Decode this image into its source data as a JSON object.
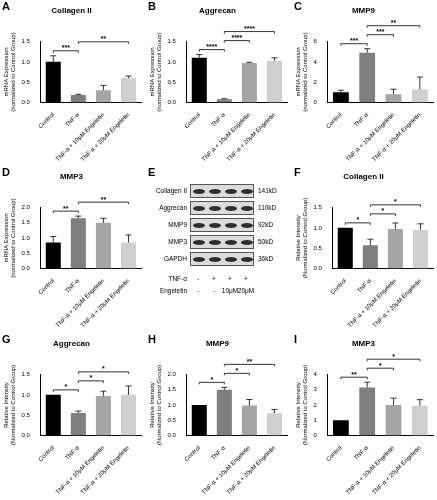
{
  "chart_data": [
    {
      "type": "bar",
      "panel": "A",
      "title": "Collagen II",
      "y_label": [
        "mRNA Expression",
        "(normalized to Control Group)"
      ],
      "categories": [
        "Control",
        "TNF-α",
        "TNF-α + 10μM Engeletin",
        "TNF-α + 20μM Engeletin"
      ],
      "values": [
        1.0,
        0.18,
        0.3,
        0.6
      ],
      "errors": [
        0.15,
        0.02,
        0.12,
        0.05
      ],
      "colors": [
        "#000000",
        "#7f7f7f",
        "#a6a6a6",
        "#cfcfcf"
      ],
      "ylim": [
        0,
        1.5
      ],
      "yticks": [
        {
          "value": 0,
          "label": "0.0"
        },
        0.5,
        {
          "value": 1,
          "label": "1.0"
        },
        1.5
      ],
      "grid": false,
      "annotations": [
        {
          "from": "Control",
          "to": "TNF-α",
          "text": "***"
        },
        {
          "from": "TNF-α",
          "to": "TNF-α + 20μM Engeletin",
          "text": "**"
        }
      ]
    },
    {
      "type": "bar",
      "panel": "B",
      "title": "Aggrecan",
      "y_label": [
        "mRNA Expression",
        "(normalized to Control Group)"
      ],
      "categories": [
        "Control",
        "TNF-α",
        "TNF-α + 10μM Engeletin",
        "TNF-α + 20μM Engeletin"
      ],
      "values": [
        1.1,
        0.08,
        0.97,
        1.03
      ],
      "errors": [
        0.08,
        0.01,
        0.02,
        0.07
      ],
      "colors": [
        "#000000",
        "#7f7f7f",
        "#a6a6a6",
        "#cfcfcf"
      ],
      "ylim": [
        0,
        1.5
      ],
      "yticks": [
        {
          "value": 0,
          "label": "0.0"
        },
        0.5,
        {
          "value": 1,
          "label": "1.0"
        },
        1.5
      ],
      "grid": false,
      "annotations": [
        {
          "from": "Control",
          "to": "TNF-α",
          "text": "****"
        },
        {
          "from": "TNF-α",
          "to": "TNF-α + 10μM Engeletin",
          "text": "****"
        },
        {
          "from": "TNF-α",
          "to": "TNF-α + 20μM Engeletin",
          "text": "****"
        }
      ]
    },
    {
      "type": "bar",
      "panel": "C",
      "title": "MMP9",
      "y_label": [
        "mRNA Expression",
        "(normalized to Control Group)"
      ],
      "categories": [
        "Control",
        "TNF-α",
        "TNF-α + 10μM Engeletin",
        "TNF-α + 20μM Engeletin"
      ],
      "values": [
        1.0,
        4.9,
        0.8,
        1.3
      ],
      "errors": [
        0.2,
        0.4,
        0.5,
        1.2
      ],
      "colors": [
        "#000000",
        "#7f7f7f",
        "#a6a6a6",
        "#cfcfcf"
      ],
      "ylim": [
        0,
        6
      ],
      "yticks": [
        0,
        2,
        4,
        6
      ],
      "grid": false,
      "annotations": [
        {
          "from": "Control",
          "to": "TNF-α",
          "text": "***"
        },
        {
          "from": "TNF-α",
          "to": "TNF-α + 10μM Engeletin",
          "text": "***"
        },
        {
          "from": "TNF-α",
          "to": "TNF-α + 20μM Engeletin",
          "text": "**"
        }
      ]
    },
    {
      "type": "bar",
      "panel": "D",
      "title": "MMP3",
      "y_label": [
        "mRNA Expression",
        "(normalized to Control Group)"
      ],
      "categories": [
        "Control",
        "TNF-α",
        "TNF-α + 10μM Engeletin",
        "TNF-α + 20μM Engeletin"
      ],
      "values": [
        0.85,
        1.65,
        1.5,
        0.85
      ],
      "errors": [
        0.2,
        0.07,
        0.15,
        0.25
      ],
      "colors": [
        "#000000",
        "#7f7f7f",
        "#a6a6a6",
        "#cfcfcf"
      ],
      "ylim": [
        0,
        2
      ],
      "yticks": [
        {
          "value": 0,
          "label": "0.0"
        },
        0.5,
        {
          "value": 1,
          "label": "1.0"
        },
        1.5,
        {
          "value": 2,
          "label": "2.0"
        }
      ],
      "grid": false,
      "annotations": [
        {
          "from": "Control",
          "to": "TNF-α",
          "text": "**"
        },
        {
          "from": "TNF-α",
          "to": "TNF-α + 20μM Engeletin",
          "text": "**"
        }
      ]
    },
    {
      "type": "bar",
      "panel": "F",
      "title": "Collagen II",
      "y_label": [
        "Relative Intensity",
        "(Normalized to Control Group)"
      ],
      "categories": [
        "Control",
        "TNF-α",
        "TNF-α + 10μM Engeletin",
        "TNF-α + 20μM Engeletin"
      ],
      "values": [
        1.0,
        0.57,
        0.97,
        0.95
      ],
      "errors": [
        0,
        0.15,
        0.15,
        0.15
      ],
      "colors": [
        "#000000",
        "#7f7f7f",
        "#a6a6a6",
        "#cfcfcf"
      ],
      "ylim": [
        0,
        1.5
      ],
      "yticks": [
        {
          "value": 0,
          "label": "0.0"
        },
        0.5,
        {
          "value": 1,
          "label": "1.0"
        },
        1.5
      ],
      "grid": false,
      "annotations": [
        {
          "from": "Control",
          "to": "TNF-α",
          "text": "*"
        },
        {
          "from": "TNF-α",
          "to": "TNF-α + 10μM Engeletin",
          "text": "*"
        },
        {
          "from": "TNF-α",
          "to": "TNF-α + 20μM Engeletin",
          "text": "*"
        }
      ]
    },
    {
      "type": "bar",
      "panel": "G",
      "title": "Aggrecan",
      "y_label": [
        "Relative Intensity",
        "(Normalized to Control Group)"
      ],
      "categories": [
        "Control",
        "TNF-α",
        "TNF-α + 10μM Engeletin",
        "TNF-α + 20μM Engeletin"
      ],
      "values": [
        1.0,
        0.55,
        0.97,
        1.0
      ],
      "errors": [
        0,
        0.05,
        0.12,
        0.22
      ],
      "colors": [
        "#000000",
        "#7f7f7f",
        "#a6a6a6",
        "#cfcfcf"
      ],
      "ylim": [
        0,
        1.5
      ],
      "yticks": [
        {
          "value": 0,
          "label": "0.0"
        },
        0.5,
        {
          "value": 1,
          "label": "1.0"
        },
        1.5
      ],
      "grid": false,
      "annotations": [
        {
          "from": "Control",
          "to": "TNF-α",
          "text": "*"
        },
        {
          "from": "TNF-α",
          "to": "TNF-α + 10μM Engeletin",
          "text": "*"
        },
        {
          "from": "TNF-α",
          "to": "TNF-α + 20μM Engeletin",
          "text": "*"
        }
      ]
    },
    {
      "type": "bar",
      "panel": "H",
      "title": "MMP9",
      "y_label": [
        "Relative Intensity",
        "(Normalized to Control Group)"
      ],
      "categories": [
        "Control",
        "TNF-α",
        "TNF-α + 10μM Engeletin",
        "TNF-α + 20μM Engeletin"
      ],
      "values": [
        1.0,
        1.5,
        0.98,
        0.73
      ],
      "errors": [
        0,
        0.08,
        0.2,
        0.12
      ],
      "colors": [
        "#000000",
        "#7f7f7f",
        "#a6a6a6",
        "#cfcfcf"
      ],
      "ylim": [
        0,
        2
      ],
      "yticks": [
        {
          "value": 0,
          "label": "0.0"
        },
        0.5,
        {
          "value": 1,
          "label": "1.0"
        },
        1.5,
        {
          "value": 2,
          "label": "2.0"
        }
      ],
      "grid": false,
      "annotations": [
        {
          "from": "Control",
          "to": "TNF-α",
          "text": "*"
        },
        {
          "from": "TNF-α",
          "to": "TNF-α + 10μM Engeletin",
          "text": "*"
        },
        {
          "from": "TNF-α",
          "to": "TNF-α + 20μM Engeletin",
          "text": "**"
        }
      ]
    },
    {
      "type": "bar",
      "panel": "I",
      "title": "MMP3",
      "y_label": [
        "Relative Intensity",
        "(Normalized to Control Group)"
      ],
      "categories": [
        "Control",
        "TNF-α",
        "TNF-α + 10μM Engeletin",
        "TNF-α + 20μM Engeletin"
      ],
      "values": [
        1.0,
        3.15,
        2.0,
        1.95
      ],
      "errors": [
        0,
        0.35,
        0.45,
        0.4
      ],
      "colors": [
        "#000000",
        "#7f7f7f",
        "#a6a6a6",
        "#cfcfcf"
      ],
      "ylim": [
        0,
        4
      ],
      "yticks": [
        0,
        1,
        2,
        3,
        4
      ],
      "grid": false,
      "annotations": [
        {
          "from": "Control",
          "to": "TNF-α",
          "text": "**"
        },
        {
          "from": "TNF-α",
          "to": "TNF-α + 10μM Engeletin",
          "text": "*"
        },
        {
          "from": "TNF-α",
          "to": "TNF-α + 20μM Engeletin",
          "text": "*"
        }
      ]
    }
  ],
  "blot": {
    "panel": "E",
    "rows": [
      {
        "label": "Collagen II",
        "size": "141kD"
      },
      {
        "label": "Aggrecan",
        "size": "110kD"
      },
      {
        "label": "MMP9",
        "size": "92kD"
      },
      {
        "label": "MMP3",
        "size": "50kD"
      },
      {
        "label": "GAPDH",
        "size": "36kD"
      }
    ],
    "treatments": [
      {
        "label": "TNF-α",
        "marks": [
          "-",
          "+",
          "+",
          "+"
        ]
      },
      {
        "label": "Engeletin",
        "marks": [
          "-",
          "-",
          "10μM",
          "20μM"
        ]
      }
    ]
  }
}
